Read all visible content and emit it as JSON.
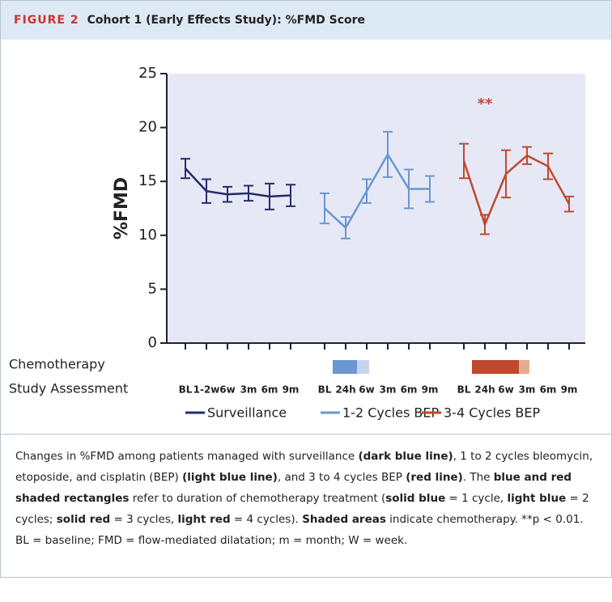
{
  "figure_label": "FIGURE 2",
  "chart_data": {
    "type": "line",
    "title": "Cohort 1 (Early Effects Study): %FMD Score",
    "ylabel": "%FMD",
    "ylim": [
      0,
      25
    ],
    "yticks": [
      0,
      5,
      10,
      15,
      20,
      25
    ],
    "background": "#e6e9f5",
    "row_labels": [
      "Chemotherapy",
      "Study Assessment"
    ],
    "annotation": "**",
    "series": [
      {
        "name": "Surveillance",
        "color": "#262a6e",
        "categories": [
          "BL",
          "1-2w",
          "6w",
          "3m",
          "6m",
          "9m"
        ],
        "values": [
          16.2,
          14.1,
          13.8,
          13.9,
          13.6,
          13.7
        ],
        "errors": [
          0.9,
          1.1,
          0.7,
          0.7,
          1.2,
          1.0
        ]
      },
      {
        "name": "1-2 Cycles BEP",
        "color": "#6a96d2",
        "categories": [
          "BL",
          "24h",
          "6w",
          "3m",
          "6m",
          "9m"
        ],
        "values": [
          12.5,
          10.7,
          14.1,
          17.5,
          14.3,
          14.3
        ],
        "errors": [
          1.4,
          1.0,
          1.1,
          2.1,
          1.8,
          1.2
        ]
      },
      {
        "name": "3-4 Cycles BEP",
        "color": "#c0482f",
        "categories": [
          "BL",
          "24h",
          "6w",
          "3m",
          "6m",
          "9m"
        ],
        "values": [
          16.9,
          11.0,
          15.7,
          17.4,
          16.4,
          12.9
        ],
        "errors": [
          1.6,
          0.9,
          2.2,
          0.8,
          1.2,
          0.7
        ]
      }
    ]
  },
  "caption": [
    {
      "text": "Changes in %FMD among patients managed with surveillance "
    },
    {
      "text": "(dark blue line)",
      "bold": true
    },
    {
      "text": ", 1 to 2 cycles bleomycin, etoposide, and cisplatin (BEP) "
    },
    {
      "text": "(light blue line)",
      "bold": true
    },
    {
      "text": ", and 3 to 4 cycles BEP "
    },
    {
      "text": "(red line)",
      "bold": true
    },
    {
      "text": ". The "
    },
    {
      "text": "blue and red shaded rectangles",
      "bold": true
    },
    {
      "text": " refer to duration of chemotherapy treatment ("
    },
    {
      "text": "solid blue",
      "bold": true
    },
    {
      "text": " = 1 cycle, "
    },
    {
      "text": "light blue",
      "bold": true
    },
    {
      "text": " = 2 cycles; "
    },
    {
      "text": "solid red",
      "bold": true
    },
    {
      "text": " = 3 cycles, "
    },
    {
      "text": "light red",
      "bold": true
    },
    {
      "text": " = 4 cycles). "
    },
    {
      "text": "Shaded areas",
      "bold": true
    },
    {
      "text": " indicate chemotherapy. **p < 0.01. BL = baseline; FMD = flow-mediated dilatation; m = month; W = week."
    }
  ]
}
